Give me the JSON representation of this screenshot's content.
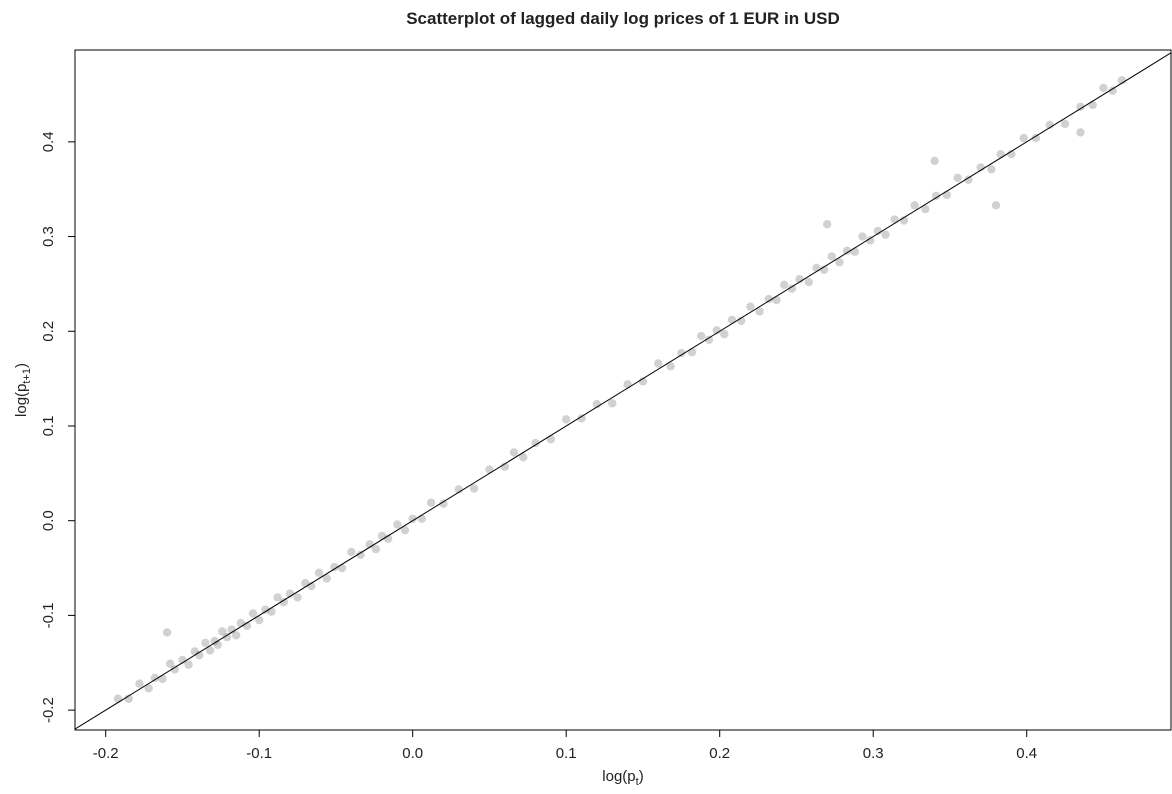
{
  "chart_data": {
    "type": "scatter",
    "title": "Scatterplot of lagged daily log prices of 1 EUR in USD",
    "xlabel": {
      "base": "log(p",
      "sub": "t",
      "close": ")"
    },
    "ylabel": {
      "base": "log(p",
      "sub": "t+1",
      "close": ")"
    },
    "xlim": [
      -0.22,
      0.494
    ],
    "ylim": [
      -0.221,
      0.497
    ],
    "xticks": [
      -0.2,
      -0.1,
      {
        "value": 0,
        "label": "0.0"
      },
      0.1,
      0.2,
      0.3,
      0.4
    ],
    "yticks": [
      -0.2,
      -0.1,
      {
        "value": 0,
        "label": "0.0"
      },
      0.1,
      0.2,
      0.3,
      0.4
    ],
    "color": "#000000",
    "alpha": 0.18,
    "reference_line": {
      "slope": 1,
      "intercept": 0
    },
    "x": [
      -0.192,
      -0.185,
      -0.178,
      -0.172,
      -0.168,
      -0.163,
      -0.158,
      -0.155,
      -0.15,
      -0.146,
      -0.142,
      -0.139,
      -0.135,
      -0.132,
      -0.129,
      -0.127,
      -0.124,
      -0.121,
      -0.118,
      -0.115,
      -0.112,
      -0.108,
      -0.104,
      -0.1,
      -0.096,
      -0.092,
      -0.088,
      -0.084,
      -0.08,
      -0.075,
      -0.07,
      -0.066,
      -0.061,
      -0.056,
      -0.051,
      -0.046,
      -0.04,
      -0.034,
      -0.028,
      -0.024,
      -0.02,
      -0.016,
      -0.01,
      -0.005,
      0.0,
      0.006,
      0.012,
      0.02,
      0.03,
      0.04,
      0.05,
      0.06,
      0.066,
      0.072,
      0.08,
      0.09,
      0.1,
      0.11,
      0.12,
      0.13,
      0.14,
      0.15,
      0.16,
      0.168,
      0.175,
      0.182,
      0.188,
      0.193,
      0.198,
      0.203,
      0.208,
      0.214,
      0.22,
      0.226,
      0.232,
      0.237,
      0.242,
      0.247,
      0.252,
      0.258,
      0.263,
      0.268,
      0.273,
      0.278,
      0.283,
      0.288,
      0.293,
      0.298,
      0.303,
      0.308,
      0.314,
      0.32,
      0.327,
      0.334,
      0.341,
      0.348,
      0.355,
      0.362,
      0.37,
      0.377,
      0.383,
      0.39,
      0.398,
      0.406,
      0.415,
      0.425,
      0.435,
      0.443,
      0.45,
      0.456,
      0.462,
      -0.16,
      0.34,
      0.38,
      0.27,
      0.435
    ],
    "values": [
      -0.188,
      -0.188,
      -0.172,
      -0.177,
      -0.166,
      -0.167,
      -0.151,
      -0.157,
      -0.147,
      -0.152,
      -0.138,
      -0.142,
      -0.129,
      -0.137,
      -0.127,
      -0.131,
      -0.117,
      -0.123,
      -0.115,
      -0.121,
      -0.108,
      -0.111,
      -0.098,
      -0.105,
      -0.094,
      -0.096,
      -0.081,
      -0.086,
      -0.077,
      -0.081,
      -0.066,
      -0.069,
      -0.055,
      -0.061,
      -0.049,
      -0.05,
      -0.033,
      -0.036,
      -0.025,
      -0.03,
      -0.016,
      -0.019,
      -0.004,
      -0.01,
      0.002,
      0.002,
      0.019,
      0.018,
      0.033,
      0.034,
      0.054,
      0.057,
      0.072,
      0.067,
      0.082,
      0.086,
      0.107,
      0.108,
      0.123,
      0.124,
      0.144,
      0.147,
      0.166,
      0.163,
      0.177,
      0.178,
      0.195,
      0.191,
      0.201,
      0.197,
      0.212,
      0.211,
      0.226,
      0.221,
      0.234,
      0.233,
      0.249,
      0.245,
      0.255,
      0.252,
      0.267,
      0.265,
      0.279,
      0.273,
      0.285,
      0.284,
      0.3,
      0.296,
      0.306,
      0.302,
      0.318,
      0.317,
      0.333,
      0.329,
      0.343,
      0.344,
      0.362,
      0.36,
      0.373,
      0.371,
      0.387,
      0.387,
      0.404,
      0.404,
      0.418,
      0.419,
      0.437,
      0.439,
      0.457,
      0.454,
      0.465,
      -0.118,
      0.38,
      0.333,
      0.313,
      0.41
    ]
  }
}
